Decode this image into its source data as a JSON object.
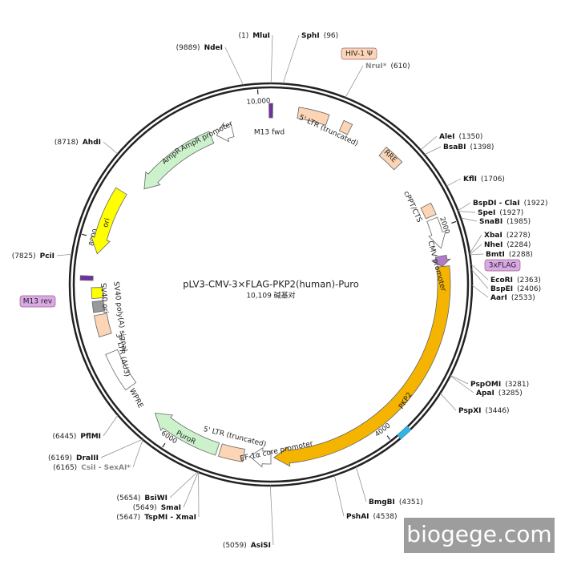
{
  "title": "pLV3-CMV-3×FLAG-PKP2(human)-Puro",
  "length": {
    "value": 10109,
    "label": "10,109 碱基对"
  },
  "ring_ticks": [
    {
      "value": 10000,
      "label": "10,000"
    },
    2000,
    4000,
    6000,
    8000
  ],
  "features": [
    "M13 fwd",
    "5' LTR (truncated)",
    "HIV-1 Ψ",
    "RRE",
    "cPPT/CTS",
    "CMV promoter",
    "3xFLAG",
    "PKP2",
    "EF-1α core promoter",
    "5' LTR (truncated)",
    "PuroR",
    "WPRE",
    "3' LTR (ΔU3)",
    "SV40 poly(A) signal",
    "SV40 ori",
    "M13 rev",
    "ori",
    "AmpR",
    "AmpR promoter"
  ],
  "sites": [
    {
      "name": "MluI",
      "position": {
        "value": 1,
        "label": "(1)"
      }
    },
    {
      "name": "SphI",
      "position": {
        "value": 96,
        "label": "(96)"
      }
    },
    {
      "name": "NruI*",
      "position": {
        "value": 610,
        "label": "(610)"
      }
    },
    {
      "name": "AleI",
      "position": {
        "value": 1350,
        "label": "(1350)"
      }
    },
    {
      "name": "BsaBI",
      "position": {
        "value": 1398,
        "label": "(1398)"
      }
    },
    {
      "name": "KflI",
      "position": {
        "value": 1706,
        "label": "(1706)"
      }
    },
    {
      "name": "BspDI - ClaI",
      "position": {
        "value": 1922,
        "label": "(1922)"
      }
    },
    {
      "name": "SpeI",
      "position": {
        "value": 1927,
        "label": "(1927)"
      }
    },
    {
      "name": "SnaBI",
      "position": {
        "value": 1985,
        "label": "(1985)"
      }
    },
    {
      "name": "XbaI",
      "position": {
        "value": 2278,
        "label": "(2278)"
      }
    },
    {
      "name": "NheI",
      "position": {
        "value": 2284,
        "label": "(2284)"
      }
    },
    {
      "name": "BmtI",
      "position": {
        "value": 2288,
        "label": "(2288)"
      }
    },
    {
      "name": "EcoRI",
      "position": {
        "value": 2363,
        "label": "(2363)"
      }
    },
    {
      "name": "BspEI",
      "position": {
        "value": 2406,
        "label": "(2406)"
      }
    },
    {
      "name": "AarI",
      "position": {
        "value": 2533,
        "label": "(2533)"
      }
    },
    {
      "name": "PspOMI",
      "position": {
        "value": 3281,
        "label": "(3281)"
      }
    },
    {
      "name": "ApaI",
      "position": {
        "value": 3285,
        "label": "(3285)"
      }
    },
    {
      "name": "PspXI",
      "position": {
        "value": 3446,
        "label": "(3446)"
      }
    },
    {
      "name": "BmgBI",
      "position": {
        "value": 4351,
        "label": "(4351)"
      }
    },
    {
      "name": "PshAI",
      "position": {
        "value": 4538,
        "label": "(4538)"
      }
    },
    {
      "name": "AsiSI",
      "position": {
        "value": 5059,
        "label": "(5059)"
      }
    },
    {
      "name": "BsiWI",
      "position": {
        "value": 5654,
        "label": "(5654)"
      }
    },
    {
      "name": "SmaI",
      "position": {
        "value": 5649,
        "label": "(5649)"
      }
    },
    {
      "name": "TspMI - XmaI",
      "position": {
        "value": 5647,
        "label": "(5647)"
      }
    },
    {
      "name": "DraIII",
      "position": {
        "value": 6169,
        "label": "(6169)"
      }
    },
    {
      "name": "CsiI - SexAI*",
      "position": {
        "value": 6165,
        "label": "(6165)"
      }
    },
    {
      "name": "PflMI",
      "position": {
        "value": 6445,
        "label": "(6445)"
      }
    },
    {
      "name": "PciI",
      "position": {
        "value": 7825,
        "label": "(7825)"
      }
    },
    {
      "name": "AhdI",
      "position": {
        "value": 8718,
        "label": "(8718)"
      }
    },
    {
      "name": "NdeI",
      "position": {
        "value": 9889,
        "label": "(9889)"
      }
    }
  ],
  "watermark": "biogege.com"
}
